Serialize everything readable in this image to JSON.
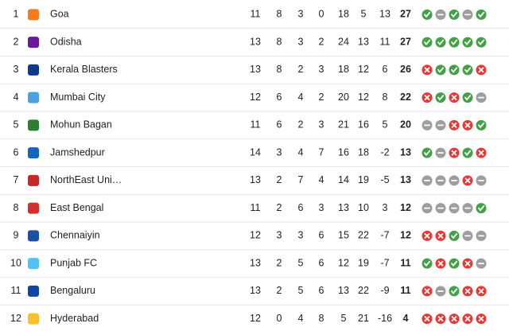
{
  "table": {
    "rows": [
      [
        1,
        "Goa",
        11,
        8,
        3,
        0,
        18,
        5,
        13,
        27,
        [
          "W",
          "D",
          "W",
          "D",
          "W"
        ]
      ],
      [
        2,
        "Odisha",
        13,
        8,
        3,
        2,
        24,
        13,
        11,
        27,
        [
          "W",
          "W",
          "W",
          "W",
          "W"
        ]
      ],
      [
        3,
        "Kerala Blasters",
        13,
        8,
        2,
        3,
        18,
        12,
        6,
        26,
        [
          "L",
          "W",
          "W",
          "W",
          "L"
        ]
      ],
      [
        4,
        "Mumbai City",
        12,
        6,
        4,
        2,
        20,
        12,
        8,
        22,
        [
          "L",
          "W",
          "L",
          "W",
          "D"
        ]
      ],
      [
        5,
        "Mohun Bagan",
        11,
        6,
        2,
        3,
        21,
        16,
        5,
        20,
        [
          "D",
          "D",
          "L",
          "L",
          "W"
        ]
      ],
      [
        6,
        "Jamshedpur",
        14,
        3,
        4,
        7,
        16,
        18,
        -2,
        13,
        [
          "W",
          "D",
          "L",
          "W",
          "L"
        ]
      ],
      [
        7,
        "NorthEast Uni…",
        13,
        2,
        7,
        4,
        14,
        19,
        -5,
        13,
        [
          "D",
          "D",
          "D",
          "L",
          "D"
        ]
      ],
      [
        8,
        "East Bengal",
        11,
        2,
        6,
        3,
        13,
        10,
        3,
        12,
        [
          "D",
          "D",
          "D",
          "D",
          "W"
        ]
      ],
      [
        9,
        "Chennaiyin",
        12,
        3,
        3,
        6,
        15,
        22,
        -7,
        12,
        [
          "L",
          "L",
          "W",
          "D",
          "D"
        ]
      ],
      [
        10,
        "Punjab FC",
        13,
        2,
        5,
        6,
        12,
        19,
        -7,
        11,
        [
          "W",
          "L",
          "W",
          "L",
          "D"
        ]
      ],
      [
        11,
        "Bengaluru",
        13,
        2,
        5,
        6,
        13,
        22,
        -9,
        11,
        [
          "L",
          "D",
          "W",
          "L",
          "L"
        ]
      ],
      [
        12,
        "Hyderabad",
        12,
        0,
        4,
        8,
        5,
        21,
        -16,
        4,
        [
          "L",
          "L",
          "L",
          "L",
          "L"
        ]
      ]
    ]
  }
}
